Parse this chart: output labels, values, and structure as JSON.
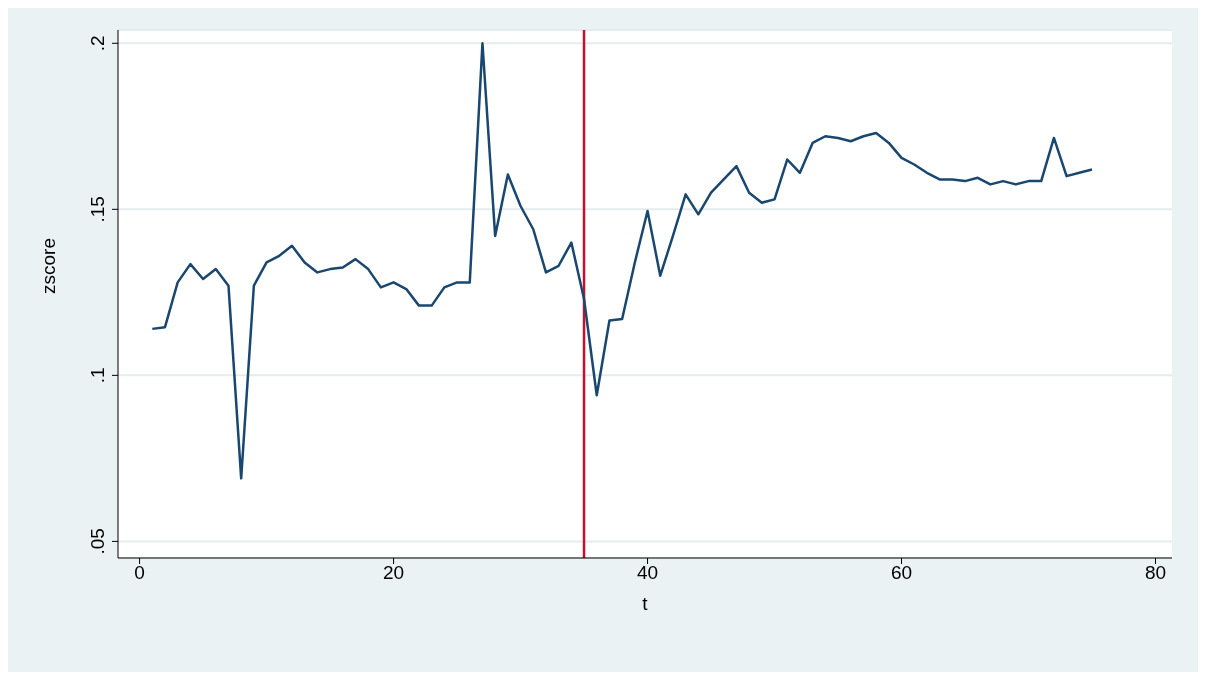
{
  "chart_data": {
    "type": "line",
    "xlabel": "t",
    "ylabel": "zscore",
    "x": [
      1,
      2,
      3,
      4,
      5,
      6,
      7,
      8,
      9,
      10,
      11,
      12,
      13,
      14,
      15,
      16,
      17,
      18,
      19,
      20,
      21,
      22,
      23,
      24,
      25,
      26,
      27,
      28,
      29,
      30,
      31,
      32,
      33,
      34,
      35,
      36,
      37,
      38,
      39,
      40,
      41,
      42,
      43,
      44,
      45,
      46,
      47,
      48,
      49,
      50,
      51,
      52,
      53,
      54,
      55,
      56,
      57,
      58,
      59,
      60,
      61,
      62,
      63,
      64,
      65,
      66,
      67,
      68,
      69,
      70,
      71,
      72,
      73,
      74,
      75
    ],
    "series": [
      {
        "color": "#1a476f",
        "values": [
          0.114,
          0.1145,
          0.128,
          0.1335,
          0.129,
          0.132,
          0.127,
          0.069,
          0.127,
          0.134,
          0.136,
          0.139,
          0.134,
          0.131,
          0.132,
          0.1325,
          0.135,
          0.132,
          0.1265,
          0.128,
          0.126,
          0.121,
          0.121,
          0.1265,
          0.128,
          0.128,
          0.2,
          0.142,
          0.1605,
          0.151,
          0.144,
          0.131,
          0.133,
          0.14,
          0.123,
          0.094,
          0.1165,
          0.117,
          0.134,
          0.1495,
          0.13,
          0.142,
          0.1545,
          0.1485,
          0.155,
          0.159,
          0.163,
          0.155,
          0.152,
          0.153,
          0.165,
          0.161,
          0.17,
          0.172,
          0.1715,
          0.1705,
          0.172,
          0.173,
          0.17,
          0.1655,
          0.1635,
          0.161,
          0.159,
          0.159,
          0.1585,
          0.1595,
          0.1575,
          0.1585,
          0.1575,
          0.1585,
          0.1585,
          0.1715,
          0.16,
          0.161,
          0.162
        ]
      }
    ],
    "xlim": [
      -1.7,
      81.3
    ],
    "xticks": [
      0,
      20,
      40,
      60,
      80
    ],
    "ylim": [
      0.045,
      0.204
    ],
    "yticks": [
      {
        "value": 0.05,
        "label": ".05"
      },
      {
        "value": 0.1,
        "label": ".1"
      },
      {
        "value": 0.15,
        "label": ".15"
      },
      {
        "value": 0.2,
        "label": ".2"
      }
    ],
    "ref_lines": [
      {
        "axis": "x",
        "value": 35,
        "color": "#c8102e"
      }
    ],
    "grid": "y",
    "legend": false,
    "marker": "none",
    "line_style": "solid"
  }
}
